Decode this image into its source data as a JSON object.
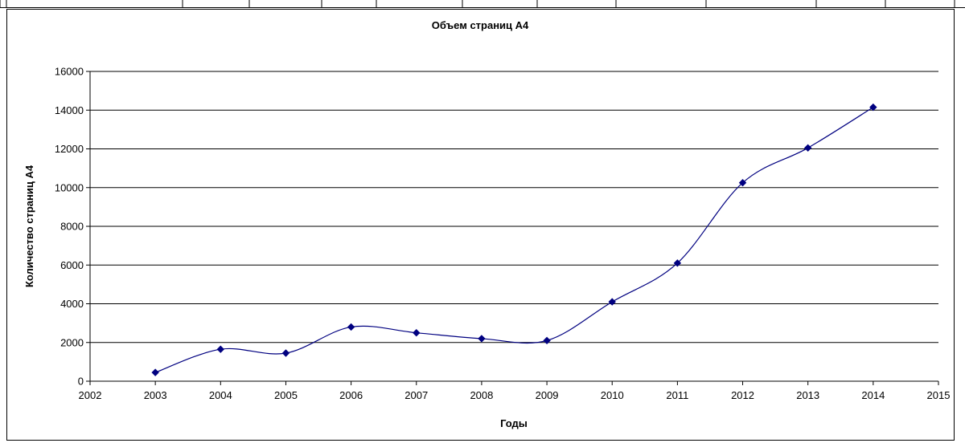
{
  "chart_data": {
    "type": "line",
    "title": "Объем страниц А4",
    "xlabel": "Годы",
    "ylabel": "Количество страниц А4",
    "xlim": [
      2002,
      2015
    ],
    "ylim": [
      0,
      16000
    ],
    "x_ticks": [
      2002,
      2003,
      2004,
      2005,
      2006,
      2007,
      2008,
      2009,
      2010,
      2011,
      2012,
      2013,
      2014,
      2015
    ],
    "y_ticks": [
      0,
      2000,
      4000,
      6000,
      8000,
      10000,
      12000,
      14000,
      16000
    ],
    "grid": "horizontal",
    "legend": "none",
    "smooth": true,
    "series": [
      {
        "color": "#000080",
        "marker": "diamond",
        "x": [
          2003,
          2004,
          2005,
          2006,
          2007,
          2008,
          2009,
          2010,
          2011,
          2012,
          2013,
          2014
        ],
        "y": [
          450,
          1650,
          1450,
          2800,
          2500,
          2200,
          2100,
          4100,
          6100,
          10250,
          12050,
          14150
        ]
      }
    ]
  }
}
